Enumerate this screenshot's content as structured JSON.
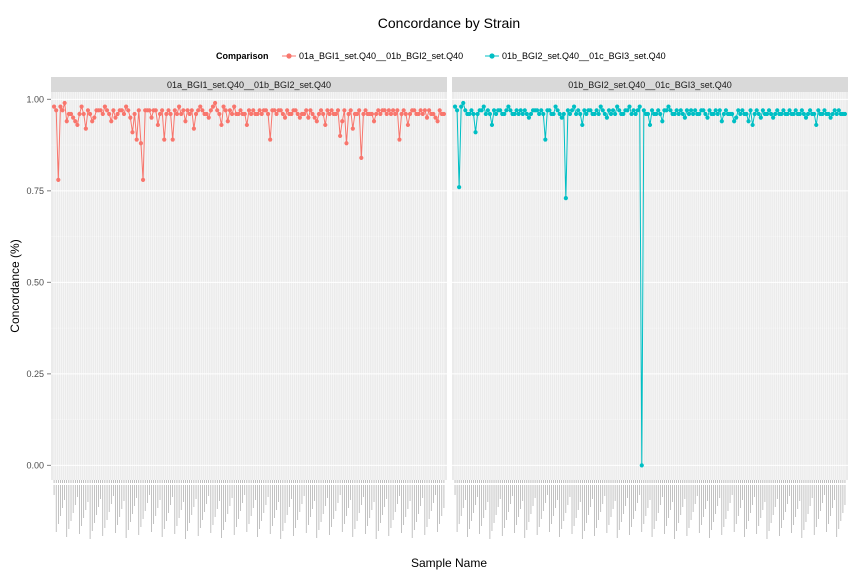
{
  "chart_data": {
    "type": "line",
    "title": "Concordance by Strain",
    "xlabel": "Sample Name",
    "ylabel": "Concordance (%)",
    "ylim": [
      -0.04,
      1.02
    ],
    "yticks": [
      "0.00",
      "0.25",
      "0.50",
      "0.75",
      "1.00"
    ],
    "legend": {
      "title": "Comparison",
      "position": "top",
      "items": [
        "01a_BGI1_set.Q40__01b_BGI2_set.Q40",
        "01b_BGI2_set.Q40__01c_BGI3_set.Q40"
      ]
    },
    "colors": [
      "#F8766D",
      "#00BFC4"
    ],
    "facets": [
      {
        "label": "01a_BGI1_set.Q40__01b_BGI2_set.Q40",
        "series": "01a_BGI1_set.Q40__01b_BGI2_set.Q40",
        "values": [
          0.98,
          0.97,
          0.78,
          0.98,
          0.97,
          0.99,
          0.94,
          0.96,
          0.96,
          0.95,
          0.94,
          0.93,
          0.96,
          0.98,
          0.96,
          0.92,
          0.97,
          0.96,
          0.94,
          0.95,
          0.97,
          0.97,
          0.97,
          0.96,
          0.98,
          0.97,
          0.96,
          0.94,
          0.97,
          0.95,
          0.96,
          0.97,
          0.97,
          0.96,
          0.98,
          0.97,
          0.95,
          0.91,
          0.96,
          0.89,
          0.97,
          0.88,
          0.78,
          0.97,
          0.97,
          0.97,
          0.95,
          0.97,
          0.97,
          0.93,
          0.96,
          0.97,
          0.89,
          0.96,
          0.97,
          0.96,
          0.89,
          0.97,
          0.96,
          0.98,
          0.96,
          0.97,
          0.94,
          0.97,
          0.96,
          0.97,
          0.92,
          0.96,
          0.97,
          0.98,
          0.97,
          0.96,
          0.96,
          0.95,
          0.97,
          0.98,
          0.99,
          0.97,
          0.96,
          0.93,
          0.98,
          0.97,
          0.94,
          0.97,
          0.96,
          0.98,
          0.96,
          0.96,
          0.97,
          0.96,
          0.96,
          0.93,
          0.97,
          0.96,
          0.97,
          0.96,
          0.96,
          0.97,
          0.96,
          0.97,
          0.97,
          0.96,
          0.89,
          0.97,
          0.97,
          0.96,
          0.97,
          0.97,
          0.96,
          0.95,
          0.97,
          0.96,
          0.96,
          0.97,
          0.97,
          0.96,
          0.95,
          0.96,
          0.96,
          0.97,
          0.95,
          0.97,
          0.96,
          0.95,
          0.94,
          0.96,
          0.97,
          0.96,
          0.93,
          0.97,
          0.96,
          0.97,
          0.96,
          0.96,
          0.97,
          0.9,
          0.94,
          0.97,
          0.88,
          0.96,
          0.97,
          0.92,
          0.96,
          0.96,
          0.97,
          0.84,
          0.96,
          0.97,
          0.96,
          0.96,
          0.96,
          0.94,
          0.96,
          0.97,
          0.96,
          0.97,
          0.97,
          0.96,
          0.97,
          0.96,
          0.97,
          0.96,
          0.97,
          0.89,
          0.96,
          0.97,
          0.96,
          0.93,
          0.96,
          0.97,
          0.97,
          0.96,
          0.96,
          0.97,
          0.96,
          0.97,
          0.95,
          0.97,
          0.96,
          0.96,
          0.95,
          0.94,
          0.97,
          0.96,
          0.96
        ]
      },
      {
        "label": "01b_BGI2_set.Q40__01c_BGI3_set.Q40",
        "series": "01b_BGI2_set.Q40__01c_BGI3_set.Q40",
        "values": [
          0.98,
          0.97,
          0.76,
          0.98,
          0.99,
          0.97,
          0.96,
          0.96,
          0.97,
          0.96,
          0.91,
          0.96,
          0.97,
          0.97,
          0.98,
          0.96,
          0.97,
          0.96,
          0.93,
          0.97,
          0.96,
          0.97,
          0.97,
          0.96,
          0.96,
          0.97,
          0.98,
          0.97,
          0.96,
          0.96,
          0.97,
          0.96,
          0.97,
          0.96,
          0.97,
          0.96,
          0.95,
          0.96,
          0.97,
          0.97,
          0.97,
          0.96,
          0.97,
          0.96,
          0.89,
          0.97,
          0.97,
          0.96,
          0.96,
          0.98,
          0.97,
          0.96,
          0.95,
          0.96,
          0.73,
          0.97,
          0.96,
          0.97,
          0.98,
          0.96,
          0.97,
          0.96,
          0.93,
          0.97,
          0.96,
          0.97,
          0.97,
          0.96,
          0.96,
          0.97,
          0.96,
          0.98,
          0.97,
          0.96,
          0.95,
          0.97,
          0.96,
          0.97,
          0.96,
          0.98,
          0.97,
          0.96,
          0.96,
          0.97,
          0.97,
          0.98,
          0.96,
          0.97,
          0.96,
          0.97,
          0.98,
          0.0,
          0.97,
          0.96,
          0.96,
          0.93,
          0.97,
          0.96,
          0.96,
          0.97,
          0.96,
          0.94,
          0.97,
          0.97,
          0.98,
          0.97,
          0.96,
          0.96,
          0.97,
          0.96,
          0.97,
          0.96,
          0.95,
          0.97,
          0.96,
          0.97,
          0.96,
          0.97,
          0.96,
          0.96,
          0.97,
          0.97,
          0.96,
          0.95,
          0.97,
          0.96,
          0.96,
          0.97,
          0.96,
          0.97,
          0.94,
          0.96,
          0.97,
          0.96,
          0.96,
          0.96,
          0.94,
          0.95,
          0.97,
          0.96,
          0.97,
          0.96,
          0.96,
          0.94,
          0.97,
          0.93,
          0.96,
          0.97,
          0.96,
          0.95,
          0.97,
          0.96,
          0.96,
          0.97,
          0.96,
          0.95,
          0.96,
          0.97,
          0.96,
          0.96,
          0.97,
          0.96,
          0.96,
          0.97,
          0.96,
          0.96,
          0.97,
          0.96,
          0.96,
          0.97,
          0.96,
          0.95,
          0.96,
          0.97,
          0.96,
          0.96,
          0.93,
          0.97,
          0.96,
          0.96,
          0.97,
          0.96,
          0.96,
          0.95,
          0.96,
          0.97,
          0.96,
          0.97,
          0.96,
          0.96,
          0.96
        ]
      }
    ],
    "grid": true
  }
}
